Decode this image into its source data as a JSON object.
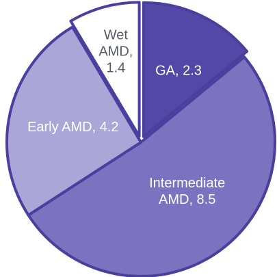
{
  "chart_data": {
    "type": "pie",
    "title": "",
    "slices": [
      {
        "label_lines": [
          "GA, 2.3"
        ],
        "category": "GA",
        "value": 2.3,
        "color": "#5448a6",
        "exploded": true,
        "label_style": "light"
      },
      {
        "label_lines": [
          "Intermediate",
          "AMD, 8.5"
        ],
        "category": "Intermediate AMD",
        "value": 8.5,
        "color": "#7b73bf",
        "exploded": false,
        "label_style": "light"
      },
      {
        "label_lines": [
          "Early AMD, 4.2"
        ],
        "category": "Early AMD",
        "value": 4.2,
        "color": "#aaa6d8",
        "exploded": false,
        "label_style": "light"
      },
      {
        "label_lines": [
          "Wet",
          "AMD,",
          "1.4"
        ],
        "category": "Wet AMD",
        "value": 1.4,
        "color": "#ffffff",
        "exploded": true,
        "label_style": "dark"
      }
    ],
    "start_angle_deg": 0,
    "direction": "clockwise",
    "outline_color": "#4a3f9e",
    "legend": "none"
  }
}
